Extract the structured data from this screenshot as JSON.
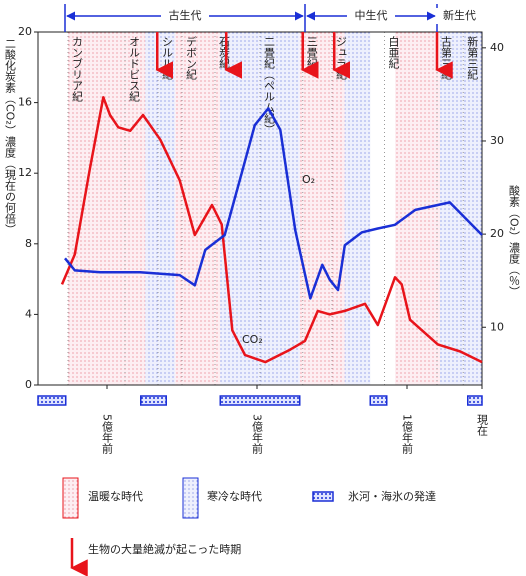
{
  "chart_data": {
    "type": "line",
    "ylabel": "二酸化炭素（CO₂）濃度（現在の何倍）",
    "y2label": "酸素（O₂）濃度（％）",
    "xlim": [
      5.92,
      0
    ],
    "xticks": [
      {
        "value": 5,
        "label": "5億年前"
      },
      {
        "value": 3,
        "label": "3億年前"
      },
      {
        "value": 1,
        "label": "1億年前"
      },
      {
        "value": 0,
        "label": "現在"
      }
    ],
    "ylim": [
      0,
      20
    ],
    "yticks": [
      0,
      4,
      8,
      12,
      16,
      20
    ],
    "y2lim": [
      3.8,
      41.7
    ],
    "y2ticks": [
      10,
      20,
      30,
      40
    ],
    "series": [
      {
        "name": "CO₂",
        "color": "#e8141b",
        "x": [
          5.6,
          5.43,
          5.23,
          5.05,
          4.96,
          4.85,
          4.69,
          4.52,
          4.29,
          4.03,
          3.83,
          3.6,
          3.47,
          3.33,
          3.16,
          2.89,
          2.56,
          2.36,
          2.19,
          2.03,
          1.83,
          1.56,
          1.39,
          1.16,
          1.07,
          0.96,
          0.59,
          0.29,
          0
        ],
        "values": [
          5.7,
          7.4,
          12.2,
          16.3,
          15.3,
          14.6,
          14.4,
          15.3,
          13.9,
          11.6,
          8.5,
          10.2,
          9.1,
          3.1,
          1.7,
          1.3,
          2.0,
          2.5,
          4.2,
          4.0,
          4.2,
          4.6,
          3.4,
          6.1,
          5.7,
          3.7,
          2.3,
          1.9,
          1.3
        ]
      },
      {
        "name": "O₂",
        "color": "#1a2fd6",
        "axis": "y2",
        "x": [
          5.56,
          5.43,
          5.09,
          4.56,
          4.03,
          3.83,
          3.69,
          3.43,
          3.23,
          3.03,
          2.85,
          2.69,
          2.49,
          2.29,
          2.13,
          2.03,
          1.92,
          1.83,
          1.6,
          1.39,
          1.16,
          0.89,
          0.43,
          0
        ],
        "values": [
          17.4,
          16.1,
          15.9,
          15.9,
          15.6,
          14.5,
          18.3,
          19.9,
          25.8,
          31.7,
          33.5,
          31.2,
          20.4,
          13.1,
          16.7,
          15.1,
          14.0,
          18.8,
          20.2,
          20.6,
          21.0,
          22.6,
          23.4,
          19.9
        ]
      }
    ],
    "eras": [
      {
        "label": "古生代",
        "start": 5.56,
        "end": 2.36
      },
      {
        "label": "中生代",
        "start": 2.36,
        "end": 0.6
      },
      {
        "label": "新生代",
        "start": 0.6,
        "end": 0
      }
    ],
    "periods": [
      {
        "label": "カンブリア紀",
        "start": 5.52,
        "end": 4.76
      },
      {
        "label": "オルドビス紀",
        "start": 4.76,
        "end": 4.32
      },
      {
        "label": "シルル紀",
        "start": 4.32,
        "end": 4.0
      },
      {
        "label": "デボン紀",
        "start": 4.0,
        "end": 3.56
      },
      {
        "label": "石炭紀",
        "start": 3.56,
        "end": 2.96
      },
      {
        "label": "二畳紀（ペルム紀）",
        "start": 2.96,
        "end": 2.39
      },
      {
        "label": "三畳紀",
        "start": 2.39,
        "end": 2.0
      },
      {
        "label": "ジュラ紀",
        "start": 2.0,
        "end": 1.3
      },
      {
        "label": "白亜紀",
        "start": 1.3,
        "end": 0.6
      },
      {
        "label": "古第三紀",
        "start": 0.6,
        "end": 0.25
      },
      {
        "label": "新第三紀",
        "start": 0.25,
        "end": 0
      }
    ],
    "climate_bands": [
      {
        "kind": "warm",
        "start": 5.52,
        "end": 4.49
      },
      {
        "kind": "cold",
        "start": 4.49,
        "end": 4.09
      },
      {
        "kind": "warm",
        "start": 4.09,
        "end": 3.49
      },
      {
        "kind": "cold",
        "start": 3.49,
        "end": 2.43
      },
      {
        "kind": "warm",
        "start": 2.43,
        "end": 1.83
      },
      {
        "kind": "cold",
        "start": 1.83,
        "end": 1.49
      },
      {
        "kind": "warm",
        "start": 1.16,
        "end": 0.56
      },
      {
        "kind": "cold",
        "start": 0.56,
        "end": 0
      }
    ],
    "glaciations": [
      [
        5.92,
        5.55
      ],
      [
        4.55,
        4.21
      ],
      [
        3.49,
        2.43
      ],
      [
        1.49,
        1.27
      ],
      [
        0.19,
        0
      ]
    ],
    "extinctions": [
      4.33,
      3.41,
      2.39,
      1.97,
      0.6
    ],
    "legend": {
      "warm": "温暖な時代",
      "cold": "寒冷な時代",
      "glacier": "氷河・海氷の発達",
      "extinction": "生物の大量絶滅が起こった時期"
    }
  }
}
